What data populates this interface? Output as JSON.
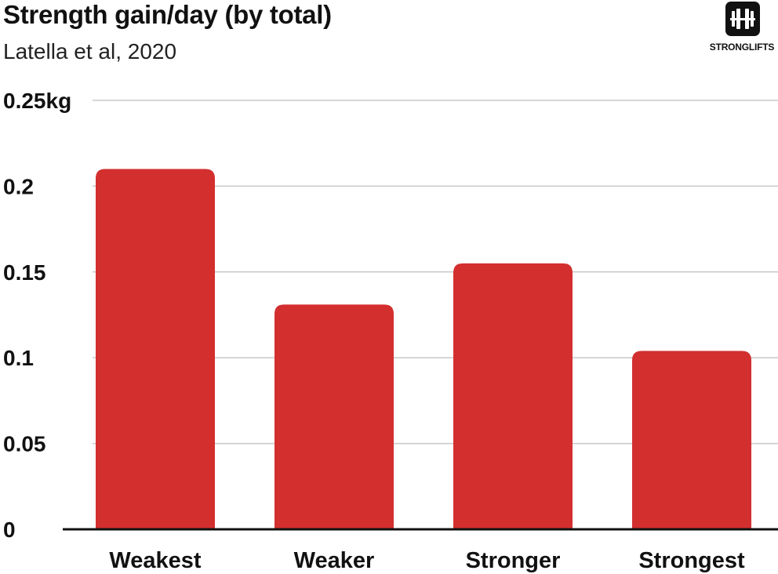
{
  "chart_data": {
    "type": "bar",
    "title": "Strength gain/day (by total)",
    "subtitle": "Latella et al, 2020",
    "categories": [
      "Weakest",
      "Weaker",
      "Stronger",
      "Strongest"
    ],
    "values": [
      0.21,
      0.131,
      0.155,
      0.104
    ],
    "ylim": [
      0,
      0.25
    ],
    "yticks": [
      0,
      0.05,
      0.1,
      0.15,
      0.2,
      0.25
    ],
    "ytick_labels": [
      "0",
      "0.05",
      "0.1",
      "0.15",
      "0.2",
      "0.25kg"
    ],
    "xlabel": "",
    "ylabel": "",
    "grid": true,
    "bar_color": "#d32f2f"
  },
  "brand": {
    "logo_text": "STRONGLIFTS",
    "logo_icon": "barbell-icon"
  }
}
